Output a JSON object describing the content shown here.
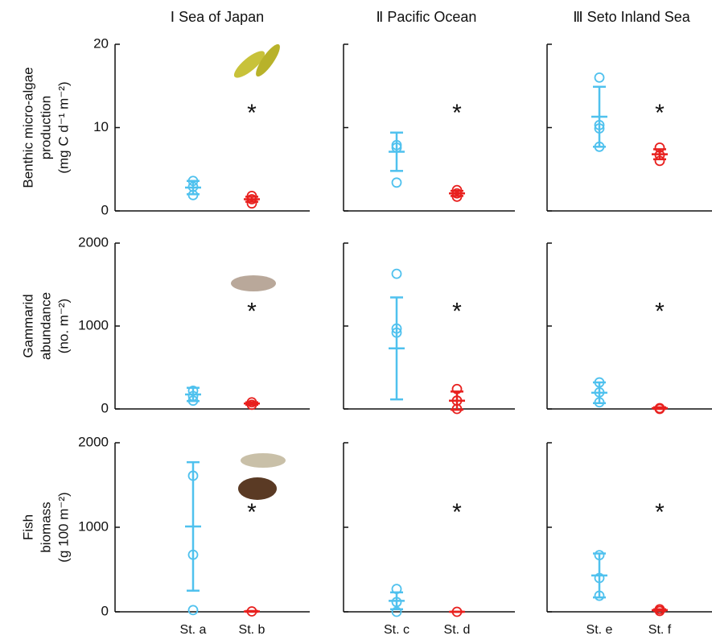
{
  "chart_data": {
    "type": "strip",
    "columns": [
      {
        "title": "Ⅰ Sea of Japan",
        "categories": [
          "St. a",
          "St. b"
        ]
      },
      {
        "title": "Ⅱ Pacific Ocean",
        "categories": [
          "St. c",
          "St. d"
        ]
      },
      {
        "title": "Ⅲ Seto Inland Sea",
        "categories": [
          "St. e",
          "St. f"
        ]
      }
    ],
    "rows": [
      {
        "ylabel": [
          "Benthic micro-algae",
          "production",
          "(mg C d⁻¹ m⁻²)"
        ],
        "ylim": [
          0,
          20
        ],
        "yticks": [
          0,
          10,
          20
        ],
        "panels": [
          {
            "annotation": "*",
            "groups": [
              {
                "color": "#4fc1ee",
                "points": [
                  3.6,
                  2.9,
                  1.9
                ],
                "mean": 2.8,
                "sd": 0.8
              },
              {
                "color": "#e8201e",
                "points": [
                  1.8,
                  1.4,
                  0.9
                ],
                "mean": 1.4,
                "sd": 0.3
              }
            ]
          },
          {
            "annotation": "*",
            "groups": [
              {
                "color": "#4fc1ee",
                "points": [
                  7.9,
                  7.6,
                  3.4
                ],
                "mean": 7.1,
                "sd": 2.3
              },
              {
                "color": "#e8201e",
                "points": [
                  2.5,
                  2.1,
                  1.7
                ],
                "mean": 2.1,
                "sd": 0.3
              }
            ]
          },
          {
            "annotation": "*",
            "groups": [
              {
                "color": "#4fc1ee",
                "points": [
                  16,
                  10.3,
                  9.9,
                  7.7
                ],
                "mean": 11.3,
                "sd": 3.6
              },
              {
                "color": "#e8201e",
                "points": [
                  7.6,
                  6.7,
                  6.0
                ],
                "mean": 6.8,
                "sd": 0.6
              }
            ]
          }
        ]
      },
      {
        "ylabel": [
          "Gammarid",
          "abundance",
          "(no. m⁻²)"
        ],
        "ylim": [
          0,
          2000
        ],
        "yticks": [
          0,
          1000,
          2000
        ],
        "panels": [
          {
            "annotation": "*",
            "groups": [
              {
                "color": "#4fc1ee",
                "points": [
                  220,
                  155,
                  100
                ],
                "mean": 175,
                "sd": 80
              },
              {
                "color": "#e8201e",
                "points": [
                  80,
                  50
                ],
                "mean": 65,
                "sd": 15
              }
            ]
          },
          {
            "annotation": "*",
            "groups": [
              {
                "color": "#4fc1ee",
                "points": [
                  1630,
                  970,
                  920
                ],
                "mean": 730,
                "sd": 615
              },
              {
                "color": "#e8201e",
                "points": [
                  240,
                  100,
                  0
                ],
                "mean": 100,
                "sd": 110
              }
            ]
          },
          {
            "annotation": "*",
            "groups": [
              {
                "color": "#4fc1ee",
                "points": [
                  320,
                  200,
                  80
                ],
                "mean": 195,
                "sd": 125
              },
              {
                "color": "#e8201e",
                "points": [
                  10,
                  0
                ],
                "mean": 10,
                "sd": 10
              }
            ]
          }
        ]
      },
      {
        "ylabel": [
          "Fish",
          "biomass",
          "(g 100 m⁻²)"
        ],
        "ylim": [
          0,
          2000
        ],
        "yticks": [
          0,
          1000,
          2000
        ],
        "panels": [
          {
            "annotation": "*",
            "groups": [
              {
                "color": "#4fc1ee",
                "points": [
                  1610,
                  675,
                  20
                ],
                "mean": 1010,
                "sd": 760
              },
              {
                "color": "#e8201e",
                "points": [
                  5
                ],
                "mean": 5,
                "sd": 5
              }
            ]
          },
          {
            "annotation": "*",
            "groups": [
              {
                "color": "#4fc1ee",
                "points": [
                  270,
                  115,
                  0
                ],
                "mean": 130,
                "sd": 100
              },
              {
                "color": "#e8201e",
                "points": [
                  0
                ],
                "mean": 0,
                "sd": 0
              }
            ]
          },
          {
            "annotation": "*",
            "groups": [
              {
                "color": "#4fc1ee",
                "points": [
                  670,
                  400,
                  190
                ],
                "mean": 430,
                "sd": 260
              },
              {
                "color": "#e8201e",
                "points": [
                  30,
                  10
                ],
                "mean": 20,
                "sd": 10
              }
            ]
          }
        ]
      }
    ]
  }
}
